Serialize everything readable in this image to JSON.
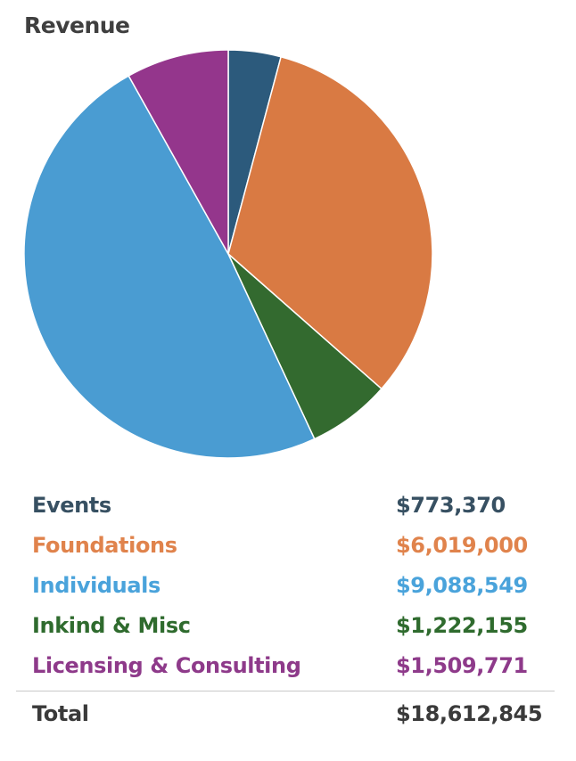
{
  "title": "Revenue",
  "chart_data": {
    "type": "pie",
    "title": "Revenue",
    "start_angle_deg": 0,
    "direction": "clockwise",
    "slices": [
      {
        "label": "Events",
        "value": 773370,
        "display": "$773,370",
        "color": "#2c5a7c"
      },
      {
        "label": "Foundations",
        "value": 6019000,
        "display": "$6,019,000",
        "color": "#d97a43"
      },
      {
        "label": "Inkind & Misc",
        "value": 1222155,
        "display": "$1,222,155",
        "color": "#336a2f"
      },
      {
        "label": "Individuals",
        "value": 9088549,
        "display": "$9,088,549",
        "color": "#4a9cd2"
      },
      {
        "label": "Licensing & Consulting",
        "value": 1509771,
        "display": "$1,509,771",
        "color": "#94368c"
      }
    ]
  },
  "legend": {
    "rows": [
      {
        "label": "Events",
        "value": "$773,370",
        "color": "#375062"
      },
      {
        "label": "Foundations",
        "value": "$6,019,000",
        "color": "#e0834c"
      },
      {
        "label": "Individuals",
        "value": "$9,088,549",
        "color": "#4aa3db"
      },
      {
        "label": "Inkind & Misc",
        "value": "$1,222,155",
        "color": "#2f6b2e"
      },
      {
        "label": "Licensing & Consulting",
        "value": "$1,509,771",
        "color": "#8e3a8a"
      }
    ],
    "total_label": "Total",
    "total_value": "$18,612,845"
  }
}
